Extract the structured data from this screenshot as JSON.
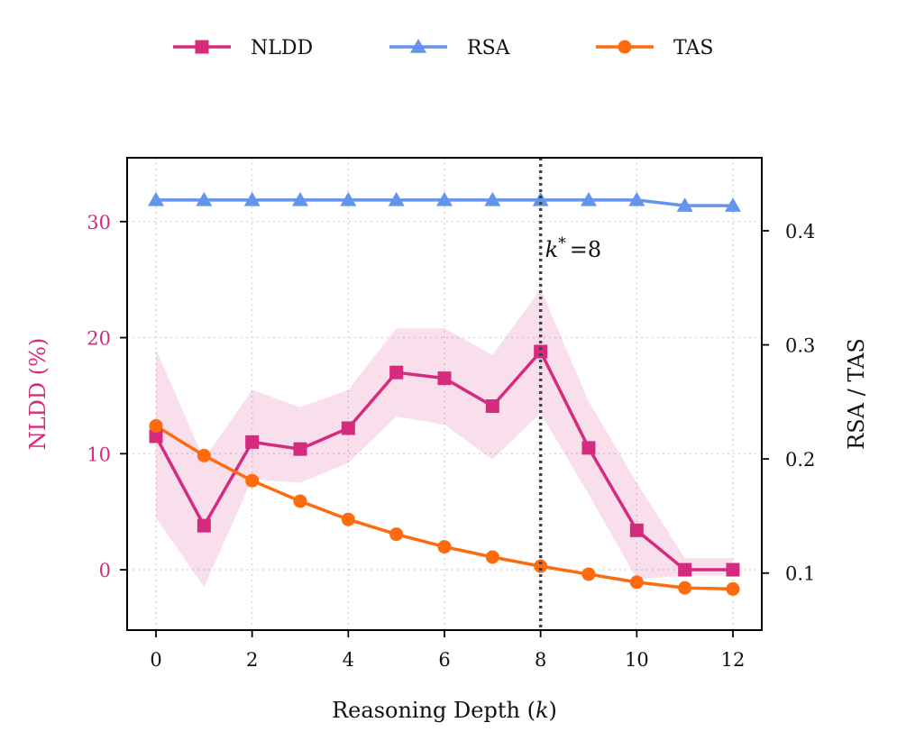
{
  "chart_data": {
    "type": "line",
    "x": [
      0,
      1,
      2,
      3,
      4,
      5,
      6,
      7,
      8,
      9,
      10,
      11,
      12
    ],
    "xlabel": "Reasoning Depth (k)",
    "xlabel_parts": {
      "prefix": "Reasoning Depth (",
      "var": "k",
      "suffix": ")"
    },
    "xlim": [
      -0.6,
      12.6
    ],
    "xticks": [
      0,
      2,
      4,
      6,
      8,
      10,
      12
    ],
    "ylabel_left": "NLDD (%)",
    "ylim_left": [
      -5.2,
      35.5
    ],
    "yticks_left": [
      0,
      10,
      20,
      30
    ],
    "ylabel_right": "RSA / TAS",
    "ylim_right": [
      0.05,
      0.464
    ],
    "yticks_right": [
      0.1,
      0.2,
      0.3,
      0.4
    ],
    "ytick_labels_right": [
      "0.1",
      "0.2",
      "0.3",
      "0.4"
    ],
    "grid": true,
    "legend_position": "top-center",
    "series": [
      {
        "name": "NLDD",
        "axis": "left",
        "color": "#d62a7e",
        "marker": "square",
        "values": [
          11.5,
          3.8,
          11.0,
          10.4,
          12.2,
          17.0,
          16.5,
          14.1,
          18.8,
          10.5,
          3.4,
          0.0,
          0.0
        ],
        "band_upper": [
          19.0,
          9.5,
          15.5,
          14.0,
          15.5,
          20.8,
          20.8,
          18.5,
          24.2,
          14.5,
          7.5,
          1.0,
          1.0
        ],
        "band_lower": [
          4.5,
          -1.5,
          7.8,
          7.5,
          9.2,
          13.2,
          12.5,
          9.5,
          13.5,
          6.5,
          -0.8,
          -0.5,
          -0.5
        ]
      },
      {
        "name": "RSA",
        "axis": "right",
        "color": "#6495ed",
        "marker": "triangle",
        "values": [
          0.427,
          0.427,
          0.427,
          0.427,
          0.427,
          0.427,
          0.427,
          0.427,
          0.427,
          0.427,
          0.427,
          0.422,
          0.422
        ]
      },
      {
        "name": "TAS",
        "axis": "right",
        "color": "#ff6a0e",
        "marker": "circle",
        "values": [
          0.229,
          0.203,
          0.181,
          0.163,
          0.147,
          0.134,
          0.123,
          0.114,
          0.106,
          0.099,
          0.092,
          0.087,
          0.086
        ]
      }
    ],
    "annotation": {
      "text": "k* = 8",
      "var": "k",
      "sup": "*",
      "rest": "=8",
      "x": 8,
      "line_color": "#444444"
    }
  }
}
